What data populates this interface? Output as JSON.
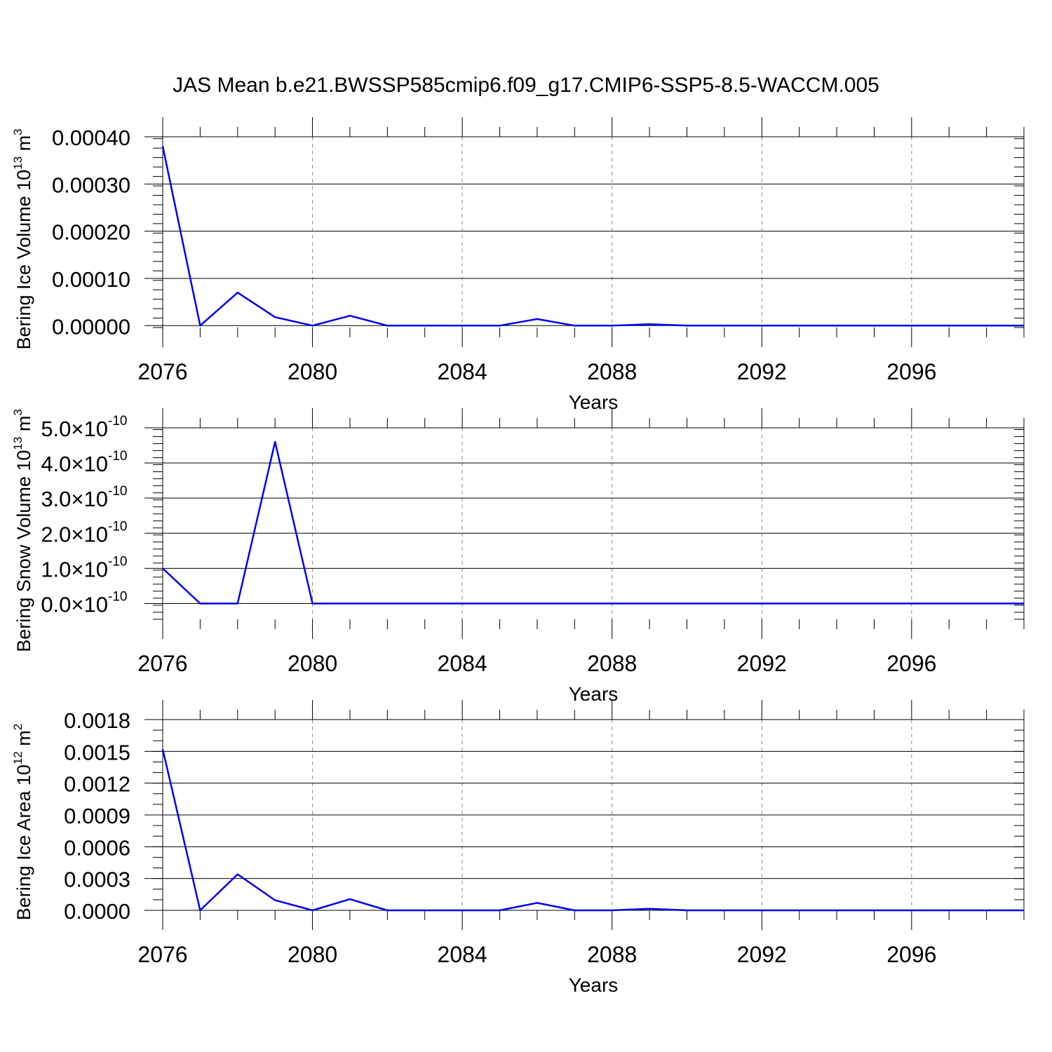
{
  "title": "JAS Mean b.e21.BWSSP585cmip6.f09_g17.CMIP6-SSP5-8.5-WACCM.005",
  "line_color": "#0000ee",
  "chart_data": [
    {
      "type": "line",
      "ylabel_text": "Bering Ice Volume 10",
      "ylabel_exp": "13",
      "ylabel_unit": " m",
      "ylabel_unit_exp": "3",
      "xlabel": "Years",
      "xlim": [
        2076,
        2099
      ],
      "ylim": [
        -4e-06,
        0.0004
      ],
      "yticks": [
        0.0,
        0.0001,
        0.0002,
        0.0003,
        0.0004
      ],
      "ytick_labels": [
        "0.00000",
        "0.00010",
        "0.00020",
        "0.00030",
        "0.00040"
      ],
      "y_minor_step": 2e-05,
      "xticks": [
        2076,
        2080,
        2084,
        2088,
        2092,
        2096
      ],
      "xtick_labels": [
        "2076",
        "2080",
        "2084",
        "2088",
        "2092",
        "2096"
      ],
      "grid_x": [
        2080,
        2084,
        2088,
        2092,
        2096
      ],
      "x": [
        2076,
        2077,
        2078,
        2079,
        2080,
        2081,
        2082,
        2083,
        2084,
        2085,
        2086,
        2087,
        2088,
        2089,
        2090,
        2091,
        2092,
        2093,
        2094,
        2095,
        2096,
        2097,
        2098,
        2099
      ],
      "values": [
        0.00038,
        0.0,
        7e-05,
        1.8e-05,
        0.0,
        2.1e-05,
        0.0,
        0.0,
        0.0,
        0.0,
        1.4e-05,
        0.0,
        0.0,
        3e-06,
        0.0,
        0.0,
        0.0,
        0.0,
        0.0,
        0.0,
        0.0,
        0.0,
        0.0,
        0.0
      ]
    },
    {
      "type": "line",
      "ylabel_text": "Bering Snow Volume 10",
      "ylabel_exp": "13",
      "ylabel_unit": " m",
      "ylabel_unit_exp": "3",
      "xlabel": "Years",
      "xlim": [
        2076,
        2099
      ],
      "ylim": [
        -4.5e-11,
        5e-10
      ],
      "yticks": [
        0.0,
        1e-10,
        2e-10,
        3e-10,
        4e-10,
        5e-10
      ],
      "ytick_labels": [
        "0.0×10",
        "1.0×10",
        "2.0×10",
        "3.0×10",
        "4.0×10",
        "5.0×10"
      ],
      "ytick_exp": "-10",
      "y_minor_step": 2e-11,
      "xticks": [
        2076,
        2080,
        2084,
        2088,
        2092,
        2096
      ],
      "xtick_labels": [
        "2076",
        "2080",
        "2084",
        "2088",
        "2092",
        "2096"
      ],
      "grid_x": [
        2080,
        2084,
        2088,
        2092,
        2096
      ],
      "x": [
        2076,
        2077,
        2078,
        2079,
        2080,
        2081,
        2082,
        2083,
        2084,
        2085,
        2086,
        2087,
        2088,
        2089,
        2090,
        2091,
        2092,
        2093,
        2094,
        2095,
        2096,
        2097,
        2098,
        2099
      ],
      "values": [
        1e-10,
        0.0,
        0.0,
        4.6e-10,
        0.0,
        0.0,
        0.0,
        0.0,
        0.0,
        0.0,
        0.0,
        0.0,
        0.0,
        0.0,
        0.0,
        0.0,
        0.0,
        0.0,
        0.0,
        0.0,
        0.0,
        0.0,
        0.0,
        0.0
      ]
    },
    {
      "type": "line",
      "ylabel_text": "Bering Ice Area 10",
      "ylabel_exp": "12",
      "ylabel_unit": " m",
      "ylabel_unit_exp": "2",
      "xlabel": "Years",
      "xlim": [
        2076,
        2099
      ],
      "ylim": [
        0.0,
        0.0018
      ],
      "yticks": [
        0.0,
        0.0003,
        0.0006,
        0.0009,
        0.0012,
        0.0015,
        0.0018
      ],
      "ytick_labels": [
        "0.0000",
        "0.0003",
        "0.0006",
        "0.0009",
        "0.0012",
        "0.0015",
        "0.0018"
      ],
      "y_minor_step": 0.0001,
      "xticks": [
        2076,
        2080,
        2084,
        2088,
        2092,
        2096
      ],
      "xtick_labels": [
        "2076",
        "2080",
        "2084",
        "2088",
        "2092",
        "2096"
      ],
      "grid_x": [
        2080,
        2084,
        2088,
        2092,
        2096
      ],
      "x": [
        2076,
        2077,
        2078,
        2079,
        2080,
        2081,
        2082,
        2083,
        2084,
        2085,
        2086,
        2087,
        2088,
        2089,
        2090,
        2091,
        2092,
        2093,
        2094,
        2095,
        2096,
        2097,
        2098,
        2099
      ],
      "values": [
        0.00152,
        0.0,
        0.00034,
        9.5e-05,
        0.0,
        0.000105,
        0.0,
        0.0,
        0.0,
        0.0,
        7e-05,
        0.0,
        0.0,
        1.5e-05,
        0.0,
        0.0,
        0.0,
        0.0,
        0.0,
        0.0,
        0.0,
        0.0,
        0.0,
        0.0
      ]
    }
  ]
}
